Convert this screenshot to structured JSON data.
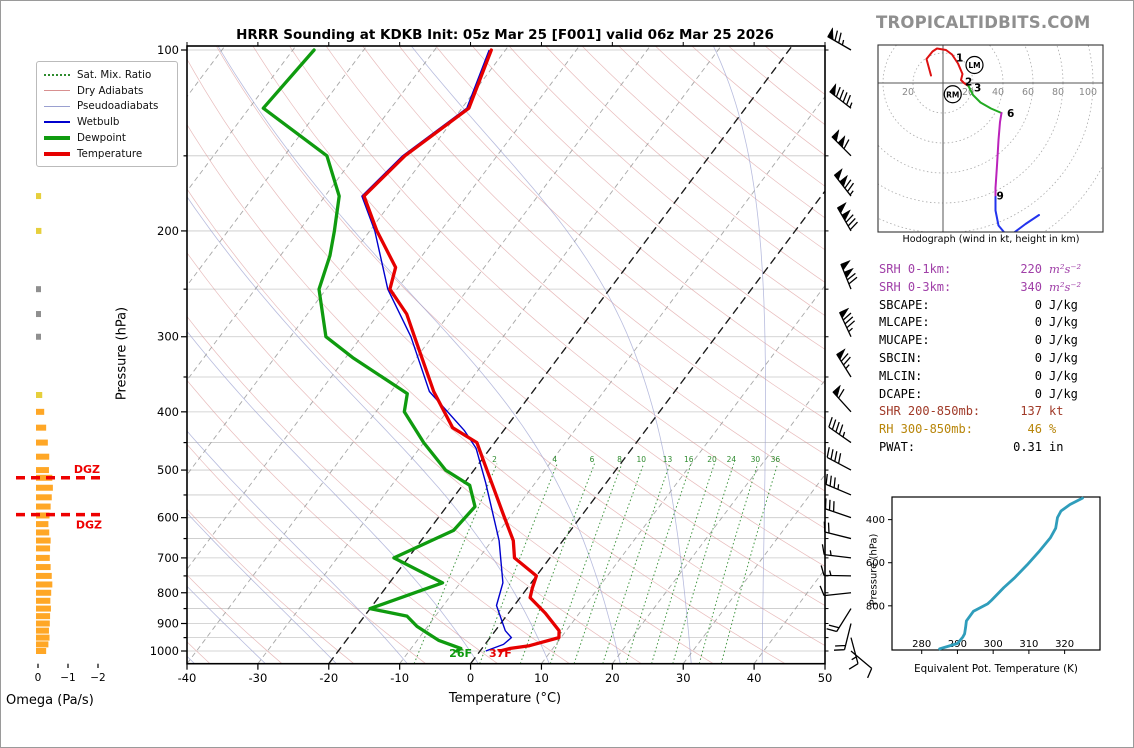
{
  "title": "HRRR Sounding at KDKB Init: 05z Mar 25 [F001] valid 06z Mar 25 2026",
  "watermark": "TROPICALTIDBITS.COM",
  "legend": {
    "items": [
      {
        "label": "Sat. Mix. Ratio",
        "key": "mixratio"
      },
      {
        "label": "Dry Adiabats",
        "key": "dryadiabat"
      },
      {
        "label": "Pseudoadiabats",
        "key": "pseudoadiabat"
      },
      {
        "label": "Wetbulb",
        "key": "wetbulb"
      },
      {
        "label": "Dewpoint",
        "key": "dewpoint"
      },
      {
        "label": "Temperature",
        "key": "temperature"
      }
    ]
  },
  "colors": {
    "temperature": "#e60000",
    "dewpoint": "#0f9b0f",
    "wetbulb": "#0000cd",
    "dryadiabat": "#d89090",
    "pseudoadiabat": "#9aa0d0",
    "mixratio": "#2e8b2e",
    "isotherm": "#999999",
    "isotherm_hl": "#1a1a1a",
    "grid": "#c8c8c8",
    "thetae": "#2f9dbb",
    "omega_orange": "#ffa726",
    "omega_yellow": "#e6cf3c",
    "omega_gray": "#8f8f8f",
    "dgz": "#ee0000",
    "hodo_red": "#dd1111",
    "hodo_green": "#22aa22",
    "hodo_magenta": "#bb22bb",
    "hodo_blue": "#2233ee",
    "srh": "#a040a8",
    "shr": "#a03a28",
    "rh": "#b8860b",
    "watermark": "#8f8f8f"
  },
  "stats": [
    {
      "label": "SRH 0-1km:",
      "value": "220",
      "unit": "m²s⁻²",
      "color": "#a040a8",
      "math": true
    },
    {
      "label": "SRH 0-3km:",
      "value": "340",
      "unit": "m²s⁻²",
      "color": "#a040a8",
      "math": true
    },
    {
      "label": "SBCAPE:",
      "value": "0",
      "unit": "J/kg",
      "color": "#000000",
      "math": false
    },
    {
      "label": "MLCAPE:",
      "value": "0",
      "unit": "J/kg",
      "color": "#000000",
      "math": false
    },
    {
      "label": "MUCAPE:",
      "value": "0",
      "unit": "J/kg",
      "color": "#000000",
      "math": false
    },
    {
      "label": "SBCIN:",
      "value": "0",
      "unit": "J/kg",
      "color": "#000000",
      "math": false
    },
    {
      "label": "MLCIN:",
      "value": "0",
      "unit": "J/kg",
      "color": "#000000",
      "math": false
    },
    {
      "label": "DCAPE:",
      "value": "0",
      "unit": "J/kg",
      "color": "#000000",
      "math": false
    },
    {
      "label": "SHR 200-850mb:",
      "value": "137",
      "unit": "kt",
      "color": "#a03a28",
      "math": false
    },
    {
      "label": "RH 300-850mb:",
      "value": "46",
      "unit": "%",
      "color": "#b8860b",
      "math": false
    },
    {
      "label": "PWAT:",
      "value": "0.31",
      "unit": "in",
      "color": "#000000",
      "math": false
    }
  ],
  "chart_data": [
    {
      "id": "skewt",
      "type": "line",
      "xlabel": "Temperature (°C)",
      "ylabel": "Pressure (hPa)",
      "xlim": [
        -40,
        50
      ],
      "plim": [
        100,
        1050
      ],
      "x_ticks": [
        -40,
        -30,
        -20,
        -10,
        0,
        10,
        20,
        30,
        40,
        50
      ],
      "p_labels": [
        100,
        200,
        300,
        400,
        500,
        600,
        700,
        800,
        900,
        1000
      ],
      "grid_step_hpa": 50,
      "isotherm_step": 10,
      "isotherm_highlight": [
        0,
        -20
      ],
      "mixratio_values": [
        2,
        4,
        6,
        8,
        10,
        13,
        16,
        20,
        24,
        30,
        36
      ],
      "surface_temp_label": "37F",
      "surface_dewp_label": "26F",
      "series": [
        {
          "name": "Temperature",
          "points": [
            [
              100,
              -62
            ],
            [
              125,
              -59
            ],
            [
              150,
              -63
            ],
            [
              175,
              -64.5
            ],
            [
              200,
              -59
            ],
            [
              230,
              -52.5
            ],
            [
              250,
              -51
            ],
            [
              275,
              -46
            ],
            [
              300,
              -42.5
            ],
            [
              370,
              -34
            ],
            [
              425,
              -27.5
            ],
            [
              450,
              -22.5
            ],
            [
              490,
              -19
            ],
            [
              540,
              -15
            ],
            [
              595,
              -11
            ],
            [
              655,
              -7
            ],
            [
              700,
              -5
            ],
            [
              750,
              0
            ],
            [
              785,
              0.7
            ],
            [
              815,
              1.4
            ],
            [
              865,
              5.2
            ],
            [
              925,
              9
            ],
            [
              950,
              9.7
            ],
            [
              980,
              6.4
            ],
            [
              990,
              4
            ],
            [
              1000,
              2.8
            ]
          ]
        },
        {
          "name": "Dewpoint",
          "points": [
            [
              100,
              -87
            ],
            [
              125,
              -88
            ],
            [
              150,
              -74
            ],
            [
              175,
              -68
            ],
            [
              200,
              -65
            ],
            [
              220,
              -63
            ],
            [
              250,
              -61
            ],
            [
              300,
              -55
            ],
            [
              325,
              -49
            ],
            [
              373,
              -37.5
            ],
            [
              400,
              -36
            ],
            [
              450,
              -30
            ],
            [
              500,
              -24
            ],
            [
              530,
              -19
            ],
            [
              575,
              -16
            ],
            [
              630,
              -16.5
            ],
            [
              700,
              -22
            ],
            [
              770,
              -12.5
            ],
            [
              850,
              -20
            ],
            [
              875,
              -14
            ],
            [
              910,
              -11.5
            ],
            [
              960,
              -7
            ],
            [
              990,
              -3
            ],
            [
              1000,
              -3.3
            ]
          ]
        },
        {
          "name": "Wetbulb",
          "points": [
            [
              100,
              -62.3
            ],
            [
              125,
              -59.3
            ],
            [
              150,
              -63.3
            ],
            [
              175,
              -64.8
            ],
            [
              200,
              -59.3
            ],
            [
              250,
              -51.3
            ],
            [
              300,
              -43
            ],
            [
              370,
              -34.6
            ],
            [
              430,
              -25.5
            ],
            [
              460,
              -22
            ],
            [
              525,
              -17
            ],
            [
              655,
              -9
            ],
            [
              770,
              -4
            ],
            [
              840,
              -2.5
            ],
            [
              925,
              1.4
            ],
            [
              950,
              3
            ],
            [
              975,
              2.6
            ],
            [
              1000,
              0.8
            ]
          ]
        }
      ]
    },
    {
      "id": "wind_barbs",
      "type": "barbs",
      "units": "kt",
      "levels": [
        {
          "p": 100,
          "spd": 75,
          "dir": 300
        },
        {
          "p": 125,
          "spd": 95,
          "dir": 308
        },
        {
          "p": 150,
          "spd": 110,
          "dir": 315
        },
        {
          "p": 175,
          "spd": 125,
          "dir": 322
        },
        {
          "p": 200,
          "spd": 130,
          "dir": 330
        },
        {
          "p": 250,
          "spd": 120,
          "dir": 338
        },
        {
          "p": 300,
          "spd": 85,
          "dir": 335
        },
        {
          "p": 350,
          "spd": 75,
          "dir": 328
        },
        {
          "p": 400,
          "spd": 60,
          "dir": 318
        },
        {
          "p": 450,
          "spd": 47,
          "dir": 305
        },
        {
          "p": 500,
          "spd": 40,
          "dir": 298
        },
        {
          "p": 550,
          "spd": 34,
          "dir": 293
        },
        {
          "p": 600,
          "spd": 28,
          "dir": 289
        },
        {
          "p": 650,
          "spd": 22,
          "dir": 284
        },
        {
          "p": 700,
          "spd": 17,
          "dir": 277
        },
        {
          "p": 750,
          "spd": 14,
          "dir": 271
        },
        {
          "p": 800,
          "spd": 12,
          "dir": 264
        },
        {
          "p": 850,
          "spd": 18,
          "dir": 212
        },
        {
          "p": 900,
          "spd": 21,
          "dir": 194
        },
        {
          "p": 950,
          "spd": 15,
          "dir": 165
        },
        {
          "p": 1000,
          "spd": 10,
          "dir": 130
        }
      ]
    },
    {
      "id": "omega",
      "type": "bar",
      "xlabel": "Omega (Pa/s)",
      "x_ticks": [
        0,
        -1,
        -2
      ],
      "dgz_label": "DGZ",
      "dgz_levels_hpa": [
        515,
        593
      ],
      "bars": [
        {
          "p": 175,
          "value": -0.04
        },
        {
          "p": 200,
          "value": -0.05
        },
        {
          "p": 250,
          "value": 0.06
        },
        {
          "p": 275,
          "value": 0.08
        },
        {
          "p": 300,
          "value": 0.07
        },
        {
          "p": 375,
          "value": -0.08
        },
        {
          "p": 400,
          "value": -0.15
        },
        {
          "p": 425,
          "value": -0.22
        },
        {
          "p": 450,
          "value": -0.28
        },
        {
          "p": 475,
          "value": -0.33
        },
        {
          "p": 500,
          "value": -0.32
        },
        {
          "p": 515,
          "value": -0.44
        },
        {
          "p": 535,
          "value": -0.46
        },
        {
          "p": 555,
          "value": -0.42
        },
        {
          "p": 575,
          "value": -0.38
        },
        {
          "p": 595,
          "value": -0.34
        },
        {
          "p": 615,
          "value": -0.3
        },
        {
          "p": 635,
          "value": -0.33
        },
        {
          "p": 655,
          "value": -0.38
        },
        {
          "p": 675,
          "value": -0.36
        },
        {
          "p": 700,
          "value": -0.35
        },
        {
          "p": 725,
          "value": -0.38
        },
        {
          "p": 750,
          "value": -0.42
        },
        {
          "p": 775,
          "value": -0.44
        },
        {
          "p": 800,
          "value": -0.4
        },
        {
          "p": 825,
          "value": -0.37
        },
        {
          "p": 850,
          "value": -0.39
        },
        {
          "p": 875,
          "value": -0.36
        },
        {
          "p": 900,
          "value": -0.35
        },
        {
          "p": 925,
          "value": -0.32
        },
        {
          "p": 950,
          "value": -0.34
        },
        {
          "p": 975,
          "value": -0.3
        },
        {
          "p": 1000,
          "value": -0.22
        }
      ]
    },
    {
      "id": "hodograph",
      "type": "line",
      "caption": "Hodograph (wind in kt, height in km)",
      "units": "kt",
      "ring_step_kt": 20,
      "ring_labels": [
        -20,
        20,
        40,
        60,
        80,
        100
      ],
      "segments": [
        {
          "name": "0-3 km",
          "color_key": "hodo_red",
          "points": [
            [
              -8,
              5
            ],
            [
              -11,
              16
            ],
            [
              -7,
              21
            ],
            [
              -4,
              23
            ],
            [
              2,
              22
            ],
            [
              6,
              19
            ],
            [
              10,
              13
            ],
            [
              13,
              6
            ],
            [
              12,
              2
            ],
            [
              14,
              0
            ],
            [
              17,
              -2
            ]
          ]
        },
        {
          "name": "3-6 km",
          "color_key": "hodo_green",
          "points": [
            [
              17,
              -2
            ],
            [
              20,
              -8
            ],
            [
              25,
              -13
            ],
            [
              32,
              -17
            ],
            [
              39,
              -20
            ]
          ]
        },
        {
          "name": "6-9 km",
          "color_key": "hodo_magenta",
          "points": [
            [
              39,
              -20
            ],
            [
              38,
              -26
            ],
            [
              37,
              -38
            ],
            [
              36,
              -55
            ],
            [
              35,
              -70
            ],
            [
              35,
              -76
            ]
          ]
        },
        {
          "name": "9+ km",
          "color_key": "hodo_blue",
          "points": [
            [
              35,
              -76
            ],
            [
              35,
              -85
            ],
            [
              37,
              -95
            ],
            [
              42,
              -101
            ],
            [
              47,
              -100
            ],
            [
              55,
              -94
            ],
            [
              64,
              -88
            ]
          ]
        }
      ],
      "height_labels": [
        {
          "km": "1",
          "u": 6,
          "v": 17
        },
        {
          "km": "2",
          "u": 12,
          "v": 1
        },
        {
          "km": "3",
          "u": 18,
          "v": -3
        },
        {
          "km": "6",
          "u": 40,
          "v": -20
        },
        {
          "km": "9",
          "u": 33,
          "v": -75
        }
      ],
      "storm_motion": [
        {
          "label": "RM",
          "u": 6.5,
          "v": -7.5
        },
        {
          "label": "LM",
          "u": 21,
          "v": 12
        }
      ]
    },
    {
      "id": "thetae",
      "type": "line",
      "xlabel": "Equivalent Pot. Temperature (K)",
      "ylabel": "Pressure (hPa)",
      "x_ticks": [
        280,
        290,
        300,
        310,
        320
      ],
      "y_ticks": [
        400,
        600,
        800
      ],
      "xlim": [
        278,
        326
      ],
      "plim": [
        295,
        1005
      ],
      "points": [
        [
          285,
          1000
        ],
        [
          290,
          975
        ],
        [
          291.5,
          945
        ],
        [
          292,
          930
        ],
        [
          292.3,
          900
        ],
        [
          292.5,
          870
        ],
        [
          294.5,
          825
        ],
        [
          298.5,
          790
        ],
        [
          299.5,
          775
        ],
        [
          303,
          715
        ],
        [
          306,
          670
        ],
        [
          309.5,
          610
        ],
        [
          313,
          545
        ],
        [
          316,
          485
        ],
        [
          317.5,
          440
        ],
        [
          318,
          390
        ],
        [
          319,
          360
        ],
        [
          321.5,
          330
        ],
        [
          325,
          300
        ]
      ]
    }
  ]
}
